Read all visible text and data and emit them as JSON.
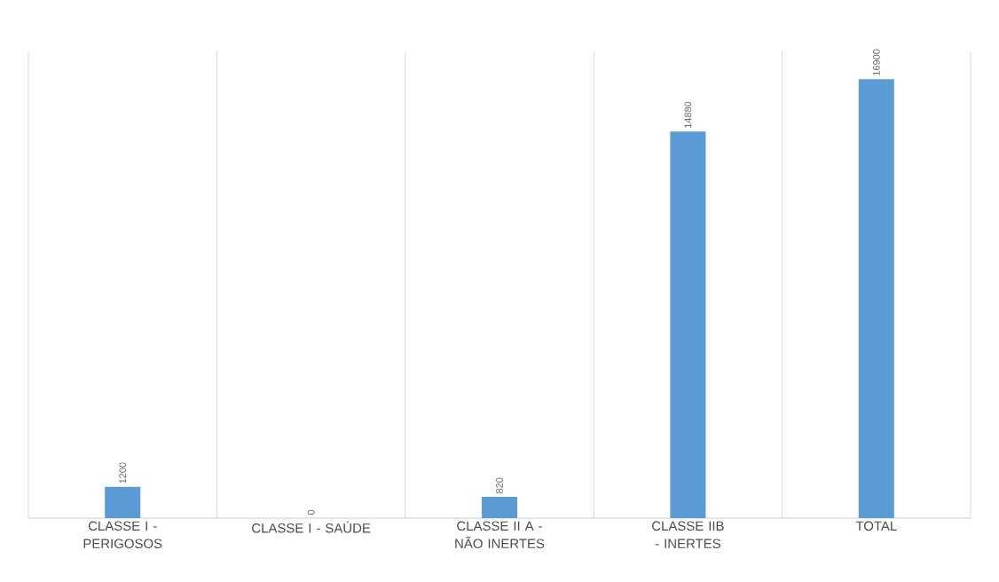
{
  "chart_data": {
    "type": "bar",
    "categories": [
      "CLASSE I - PERIGOSOS",
      "CLASSE I - SAÚDE",
      "CLASSE II A - NÃO INERTES",
      "CLASSE IIB - INERTES",
      "TOTAL"
    ],
    "values": [
      1200,
      0,
      820,
      14880,
      16900
    ],
    "color": "#5b9bd5",
    "data_labels": true,
    "grid": "x"
  }
}
